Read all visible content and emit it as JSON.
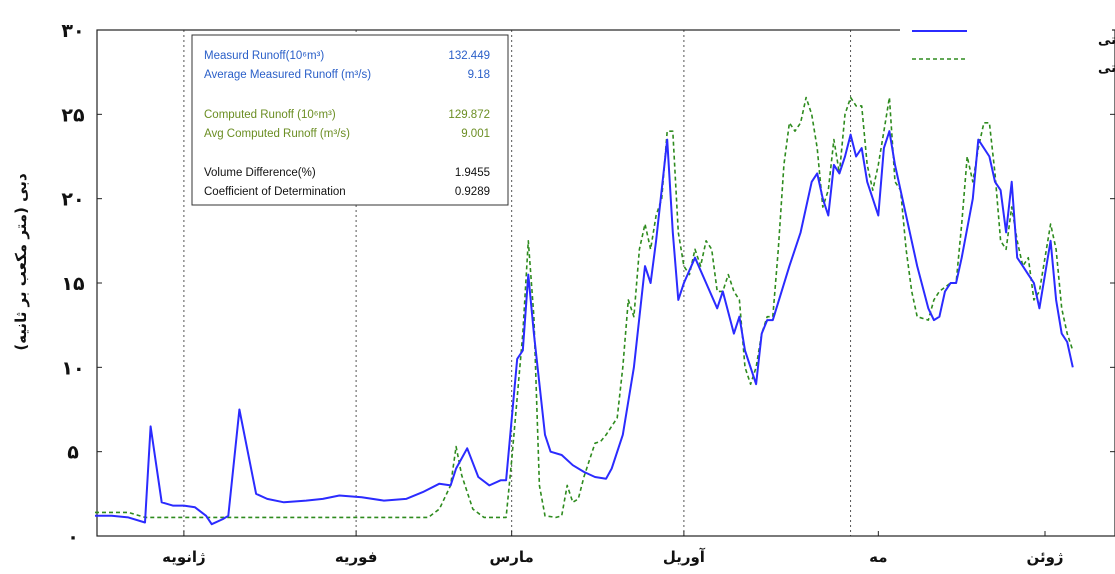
{
  "colors": {
    "observed": "#2b2bff",
    "computed": "#2e8b1e",
    "frame": "#222222",
    "grid": "#555555",
    "measured_text": "#2a5fc8",
    "computed_text": "#6b8e23",
    "stats_text": "#111111"
  },
  "legend": [
    {
      "label": "دبی مشاهداتی",
      "style": "solid"
    },
    {
      "label": "دبی محاسباتی",
      "style": "dashed"
    }
  ],
  "annotation": {
    "measured": [
      {
        "label": "Measurd Runoff(10⁶m³)",
        "value": "132.449"
      },
      {
        "label": "Average Measured Runoff (m³/s)",
        "value": "9.18"
      }
    ],
    "computed": [
      {
        "label": "Computed Runoff (10⁶m³)",
        "value": "129.872"
      },
      {
        "label": "Avg Computed Runoff (m³/s)",
        "value": "9.001"
      }
    ],
    "stats": [
      {
        "label": "Volume Difference(%)",
        "value": "1.9455"
      },
      {
        "label": "Coefficient of Determination",
        "value": "0.9289"
      }
    ]
  },
  "chart_data": {
    "type": "line",
    "xlabel": "",
    "ylabel": "دبی (متر مکعب بر ثانیه)",
    "ylim": [
      0,
      30
    ],
    "xlim": [
      0,
      180
    ],
    "grid": "vertical dotted at month boundaries",
    "legend_position": "top-right",
    "yticks": [
      {
        "value": 0,
        "label": "۰"
      },
      {
        "value": 5,
        "label": "۵"
      },
      {
        "value": 10,
        "label": "۱۰"
      },
      {
        "value": 15,
        "label": "۱۵"
      },
      {
        "value": 20,
        "label": "۲۰"
      },
      {
        "value": 25,
        "label": "۲۵"
      },
      {
        "value": 30,
        "label": "۳۰"
      }
    ],
    "month_boundaries": [
      16,
      47,
      75,
      106,
      136
    ],
    "xticks": [
      {
        "x": 16,
        "label": "ژانویه"
      },
      {
        "x": 47,
        "label": "فوریه"
      },
      {
        "x": 75,
        "label": "مارس"
      },
      {
        "x": 106,
        "label": "آوریل"
      },
      {
        "x": 141,
        "label": "مه"
      },
      {
        "x": 171,
        "label": "ژوئن"
      }
    ],
    "series": [
      {
        "name": "دبی مشاهداتی",
        "style": "solid",
        "points": [
          [
            0,
            1.2
          ],
          [
            3,
            1.2
          ],
          [
            6,
            1.1
          ],
          [
            9,
            0.8
          ],
          [
            10,
            6.5
          ],
          [
            12,
            2.0
          ],
          [
            14,
            1.8
          ],
          [
            16,
            1.8
          ],
          [
            18,
            1.7
          ],
          [
            20,
            1.2
          ],
          [
            21,
            0.7
          ],
          [
            23,
            1.0
          ],
          [
            24,
            1.2
          ],
          [
            26,
            7.5
          ],
          [
            29,
            2.5
          ],
          [
            31,
            2.2
          ],
          [
            34,
            2.0
          ],
          [
            38,
            2.1
          ],
          [
            41,
            2.2
          ],
          [
            44,
            2.4
          ],
          [
            48,
            2.3
          ],
          [
            52,
            2.1
          ],
          [
            56,
            2.2
          ],
          [
            59,
            2.6
          ],
          [
            62,
            3.1
          ],
          [
            64,
            3.0
          ],
          [
            65,
            4.0
          ],
          [
            67,
            5.2
          ],
          [
            69,
            3.5
          ],
          [
            71,
            3.0
          ],
          [
            73,
            3.3
          ],
          [
            74,
            3.3
          ],
          [
            76,
            10.5
          ],
          [
            77,
            11.0
          ],
          [
            78,
            15.5
          ],
          [
            79,
            12.0
          ],
          [
            81,
            6.0
          ],
          [
            82,
            5.0
          ],
          [
            84,
            4.8
          ],
          [
            86,
            4.2
          ],
          [
            88,
            3.8
          ],
          [
            90,
            3.5
          ],
          [
            92,
            3.4
          ],
          [
            93,
            4.0
          ],
          [
            95,
            6.0
          ],
          [
            97,
            10.0
          ],
          [
            99,
            16.0
          ],
          [
            100,
            15.0
          ],
          [
            101,
            17.5
          ],
          [
            103,
            23.5
          ],
          [
            104,
            18.0
          ],
          [
            105,
            14.0
          ],
          [
            106,
            15.0
          ],
          [
            108,
            16.5
          ],
          [
            110,
            15.0
          ],
          [
            112,
            13.5
          ],
          [
            113,
            14.5
          ],
          [
            115,
            12.0
          ],
          [
            116,
            13.0
          ],
          [
            117,
            11.0
          ],
          [
            119,
            9.0
          ],
          [
            120,
            12.0
          ],
          [
            121,
            12.8
          ],
          [
            122,
            12.8
          ],
          [
            125,
            16.0
          ],
          [
            127,
            18.0
          ],
          [
            129,
            21.0
          ],
          [
            130,
            21.5
          ],
          [
            131,
            20.0
          ],
          [
            132,
            19.0
          ],
          [
            133,
            22.0
          ],
          [
            134,
            21.5
          ],
          [
            135,
            22.5
          ],
          [
            136,
            23.8
          ],
          [
            137,
            22.5
          ],
          [
            138,
            23.0
          ],
          [
            139,
            21.0
          ],
          [
            140,
            20.0
          ],
          [
            141,
            19.0
          ],
          [
            142,
            23.0
          ],
          [
            143,
            24.0
          ],
          [
            144,
            22.0
          ],
          [
            146,
            19.0
          ],
          [
            148,
            16.0
          ],
          [
            150,
            13.5
          ],
          [
            151,
            12.8
          ],
          [
            152,
            13.0
          ],
          [
            153,
            14.5
          ],
          [
            154,
            15.0
          ],
          [
            155,
            15.0
          ],
          [
            156,
            16.5
          ],
          [
            158,
            20.0
          ],
          [
            159,
            23.5
          ],
          [
            161,
            22.5
          ],
          [
            162,
            21.0
          ],
          [
            163,
            20.5
          ],
          [
            164,
            18.0
          ],
          [
            165,
            21.0
          ],
          [
            166,
            16.5
          ],
          [
            167,
            16.0
          ],
          [
            168,
            15.5
          ],
          [
            169,
            15.0
          ],
          [
            170,
            13.5
          ],
          [
            171,
            15.5
          ],
          [
            172,
            17.5
          ],
          [
            173,
            14.0
          ],
          [
            174,
            12.0
          ],
          [
            175,
            11.5
          ],
          [
            176,
            10.0
          ]
        ]
      },
      {
        "name": "دبی محاسباتی",
        "style": "dashed",
        "points": [
          [
            0,
            1.4
          ],
          [
            6,
            1.4
          ],
          [
            9,
            1.1
          ],
          [
            12,
            1.1
          ],
          [
            20,
            1.1
          ],
          [
            30,
            1.1
          ],
          [
            40,
            1.1
          ],
          [
            50,
            1.1
          ],
          [
            55,
            1.1
          ],
          [
            60,
            1.1
          ],
          [
            62,
            1.6
          ],
          [
            64,
            3.0
          ],
          [
            65,
            5.3
          ],
          [
            66,
            3.6
          ],
          [
            68,
            1.6
          ],
          [
            70,
            1.1
          ],
          [
            73,
            1.1
          ],
          [
            74,
            1.1
          ],
          [
            75,
            4.5
          ],
          [
            77,
            12.0
          ],
          [
            78,
            17.5
          ],
          [
            79,
            13.0
          ],
          [
            80,
            3.0
          ],
          [
            81,
            1.2
          ],
          [
            83,
            1.1
          ],
          [
            84,
            1.2
          ],
          [
            85,
            3.0
          ],
          [
            86,
            2.0
          ],
          [
            87,
            2.2
          ],
          [
            88,
            3.5
          ],
          [
            90,
            5.5
          ],
          [
            91,
            5.6
          ],
          [
            92,
            6.0
          ],
          [
            94,
            7.0
          ],
          [
            95,
            10.0
          ],
          [
            96,
            14.0
          ],
          [
            97,
            13.0
          ],
          [
            98,
            17.0
          ],
          [
            99,
            18.5
          ],
          [
            100,
            17.0
          ],
          [
            101,
            19.0
          ],
          [
            102,
            20.0
          ],
          [
            103,
            24.0
          ],
          [
            104,
            24.0
          ],
          [
            105,
            18.0
          ],
          [
            106,
            16.0
          ],
          [
            107,
            15.5
          ],
          [
            108,
            17.0
          ],
          [
            109,
            16.0
          ],
          [
            110,
            17.5
          ],
          [
            111,
            17.0
          ],
          [
            112,
            14.5
          ],
          [
            113,
            14.5
          ],
          [
            114,
            15.5
          ],
          [
            115,
            14.5
          ],
          [
            116,
            14.0
          ],
          [
            117,
            10.0
          ],
          [
            118,
            9.0
          ],
          [
            119,
            10.0
          ],
          [
            120,
            12.0
          ],
          [
            121,
            13.0
          ],
          [
            122,
            13.0
          ],
          [
            123,
            17.0
          ],
          [
            124,
            22.0
          ],
          [
            125,
            24.5
          ],
          [
            126,
            24.0
          ],
          [
            127,
            24.5
          ],
          [
            128,
            26.0
          ],
          [
            129,
            25.0
          ],
          [
            130,
            23.0
          ],
          [
            131,
            19.5
          ],
          [
            132,
            20.5
          ],
          [
            133,
            23.5
          ],
          [
            134,
            21.5
          ],
          [
            135,
            25.0
          ],
          [
            136,
            26.0
          ],
          [
            137,
            25.5
          ],
          [
            138,
            25.5
          ],
          [
            139,
            22.0
          ],
          [
            140,
            20.5
          ],
          [
            141,
            22.0
          ],
          [
            142,
            24.0
          ],
          [
            143,
            26.0
          ],
          [
            144,
            21.0
          ],
          [
            145,
            20.5
          ],
          [
            146,
            17.0
          ],
          [
            147,
            14.5
          ],
          [
            148,
            13.0
          ],
          [
            150,
            12.8
          ],
          [
            151,
            14.0
          ],
          [
            152,
            14.5
          ],
          [
            154,
            15.0
          ],
          [
            155,
            15.0
          ],
          [
            156,
            18.5
          ],
          [
            157,
            22.5
          ],
          [
            158,
            21.0
          ],
          [
            159,
            23.0
          ],
          [
            160,
            24.5
          ],
          [
            161,
            24.5
          ],
          [
            162,
            21.5
          ],
          [
            163,
            17.5
          ],
          [
            164,
            17.0
          ],
          [
            165,
            19.5
          ],
          [
            166,
            17.5
          ],
          [
            167,
            16.0
          ],
          [
            168,
            16.5
          ],
          [
            169,
            14.0
          ],
          [
            170,
            14.5
          ],
          [
            171,
            16.5
          ],
          [
            172,
            18.5
          ],
          [
            173,
            17.0
          ],
          [
            174,
            13.5
          ],
          [
            175,
            12.0
          ],
          [
            176,
            11.0
          ]
        ]
      }
    ]
  }
}
